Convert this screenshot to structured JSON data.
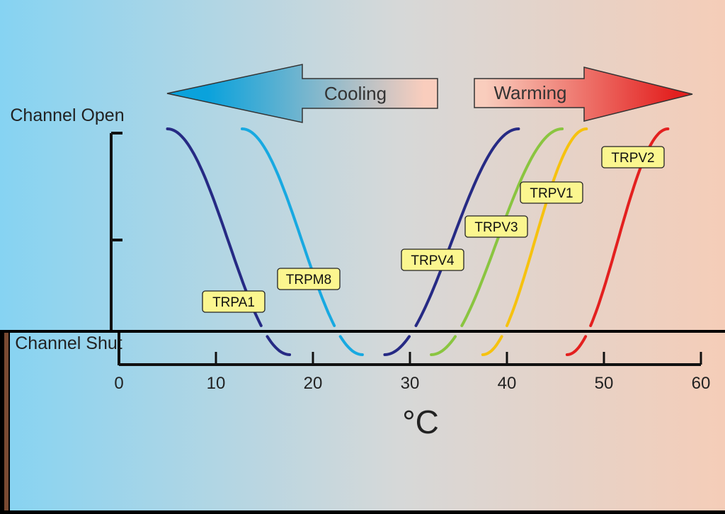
{
  "colors": {
    "bg_left": "#86d3f2",
    "bg_mid": "#d6d8d8",
    "bg_right": "#f5cdb8",
    "frame": "#000000",
    "cool_arrow_tip": "#0aa2dc",
    "cool_arrow_tail": "#f9cdbd",
    "warm_arrow_tail": "#f9cdbd",
    "warm_arrow_tip": "#e3201f",
    "label_fill": "#fbf68f",
    "axis": "#111111"
  },
  "arrows": {
    "cooling": "Cooling",
    "warming": "Warming"
  },
  "chart_data": {
    "type": "line",
    "xlabel": "°C",
    "ylabel_top": "Channel Open",
    "ylabel_bottom": "Channel Shut",
    "xlim": [
      0,
      60
    ],
    "xticks": [
      "0",
      "10",
      "20",
      "30",
      "40",
      "50",
      "60"
    ],
    "ylim": [
      0,
      1
    ],
    "grid": false,
    "series": [
      {
        "name": "TRPA1",
        "color": "#262a84",
        "x0": 5,
        "x1": 17.6,
        "direction": "cold",
        "label": "TRPA1"
      },
      {
        "name": "TRPM8",
        "color": "#18a9e1",
        "x0": 12.7,
        "x1": 25.1,
        "direction": "cold",
        "label": "TRPM8"
      },
      {
        "name": "TRPV4",
        "color": "#262a84",
        "x0": 27.4,
        "x1": 41.2,
        "direction": "hot",
        "label": "TRPV4"
      },
      {
        "name": "TRPV3",
        "color": "#8ac540",
        "x0": 32.2,
        "x1": 45.7,
        "direction": "hot",
        "label": "TRPV3"
      },
      {
        "name": "TRPV1",
        "color": "#f6c20f",
        "x0": 37.5,
        "x1": 48.2,
        "direction": "hot",
        "label": "TRPV1"
      },
      {
        "name": "TRPV2",
        "color": "#e3201f",
        "x0": 46.2,
        "x1": 56.6,
        "direction": "hot",
        "label": "TRPV2"
      }
    ]
  }
}
